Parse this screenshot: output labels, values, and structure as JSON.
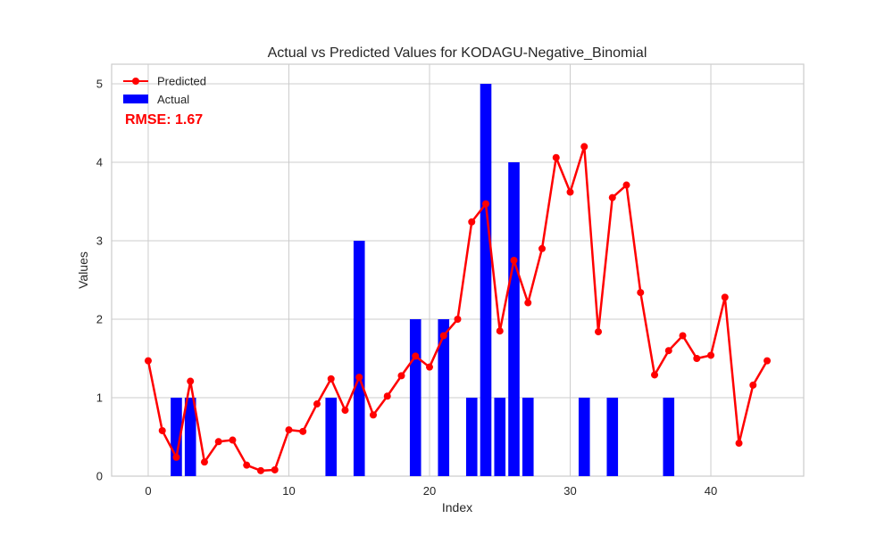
{
  "chart_data": {
    "type": "bar+line",
    "title": "Actual vs Predicted Values for KODAGU-Negative_Binomial",
    "xlabel": "Index",
    "ylabel": "Values",
    "xlim": [
      -2.6,
      46.6
    ],
    "ylim": [
      0,
      5.25
    ],
    "x_ticks": [
      0,
      10,
      20,
      30,
      40
    ],
    "y_ticks": [
      0,
      1,
      2,
      3,
      4,
      5
    ],
    "grid": true,
    "legend_position": "top-left",
    "annotation": "RMSE: 1.67",
    "series": [
      {
        "name": "Predicted",
        "type": "line",
        "color": "#ff0000",
        "marker": "circle",
        "x": [
          0,
          1,
          2,
          3,
          4,
          5,
          6,
          7,
          8,
          9,
          10,
          11,
          12,
          13,
          14,
          15,
          16,
          17,
          18,
          19,
          20,
          21,
          22,
          23,
          24,
          25,
          26,
          27,
          28,
          29,
          30,
          31,
          32,
          33,
          34,
          35,
          36,
          37,
          38,
          39,
          40,
          41,
          42,
          43,
          44
        ],
        "values": [
          1.47,
          0.58,
          0.24,
          1.21,
          0.18,
          0.44,
          0.46,
          0.14,
          0.07,
          0.08,
          0.59,
          0.57,
          0.92,
          1.24,
          0.84,
          1.26,
          0.78,
          1.02,
          1.28,
          1.53,
          1.39,
          1.79,
          2.0,
          3.24,
          3.47,
          1.85,
          2.75,
          2.21,
          2.9,
          4.06,
          3.62,
          4.2,
          1.84,
          3.55,
          3.71,
          2.34,
          1.29,
          1.6,
          1.79,
          1.5,
          1.54,
          2.28,
          0.42,
          1.16,
          1.47
        ]
      },
      {
        "name": "Actual",
        "type": "bar",
        "color": "#0000ff",
        "x": [
          0,
          1,
          2,
          3,
          4,
          5,
          6,
          7,
          8,
          9,
          10,
          11,
          12,
          13,
          14,
          15,
          16,
          17,
          18,
          19,
          20,
          21,
          22,
          23,
          24,
          25,
          26,
          27,
          28,
          29,
          30,
          31,
          32,
          33,
          34,
          35,
          36,
          37,
          38,
          39,
          40,
          41,
          42,
          43,
          44
        ],
        "values": [
          0,
          0,
          1,
          1,
          0,
          0,
          0,
          0,
          0,
          0,
          0,
          0,
          0,
          1,
          0,
          3,
          0,
          0,
          0,
          2,
          0,
          2,
          0,
          1,
          5,
          1,
          4,
          1,
          0,
          0,
          0,
          1,
          0,
          1,
          0,
          0,
          0,
          1,
          0,
          0,
          0,
          0,
          0,
          0,
          0
        ]
      }
    ]
  }
}
